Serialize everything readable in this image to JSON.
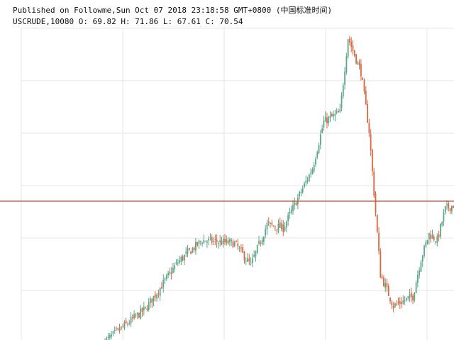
{
  "header": {
    "published_line": "Published on Followme,Sun Oct 07 2018 23:18:58 GMT+0800 (中国标准时间)",
    "ohlc_line": "USCRUDE,10080 O: 69.82 H: 71.86 L: 67.61 C: 70.54"
  },
  "colors": {
    "up": "#5ba68a",
    "down": "#e0653f",
    "price_line": "#c8442a",
    "grid": "#e6e6e6"
  },
  "chart_data": {
    "type": "candlestick",
    "symbol": "USCRUDE",
    "timeframe": "10080",
    "last_bar": {
      "open": 69.82,
      "high": 71.86,
      "low": 67.61,
      "close": 70.54
    },
    "current_price_line": 70.54,
    "y_range": [
      26,
      126
    ],
    "grid": true,
    "series": {
      "name": "USCRUDE",
      "close_path": [
        [
          0,
          25.5
        ],
        [
          25,
          36
        ],
        [
          45,
          51
        ],
        [
          60,
          58
        ],
        [
          80,
          57
        ],
        [
          90,
          50
        ],
        [
          100,
          63
        ],
        [
          110,
          62
        ],
        [
          128,
          81
        ],
        [
          135,
          96
        ],
        [
          145,
          99
        ],
        [
          150,
          123
        ],
        [
          158,
          112
        ],
        [
          163,
          93
        ],
        [
          170,
          47
        ],
        [
          178,
          37
        ],
        [
          190,
          40
        ],
        [
          195,
          52
        ],
        [
          200,
          60
        ],
        [
          205,
          58
        ],
        [
          210,
          68
        ],
        [
          218,
          70
        ]
      ]
    }
  }
}
